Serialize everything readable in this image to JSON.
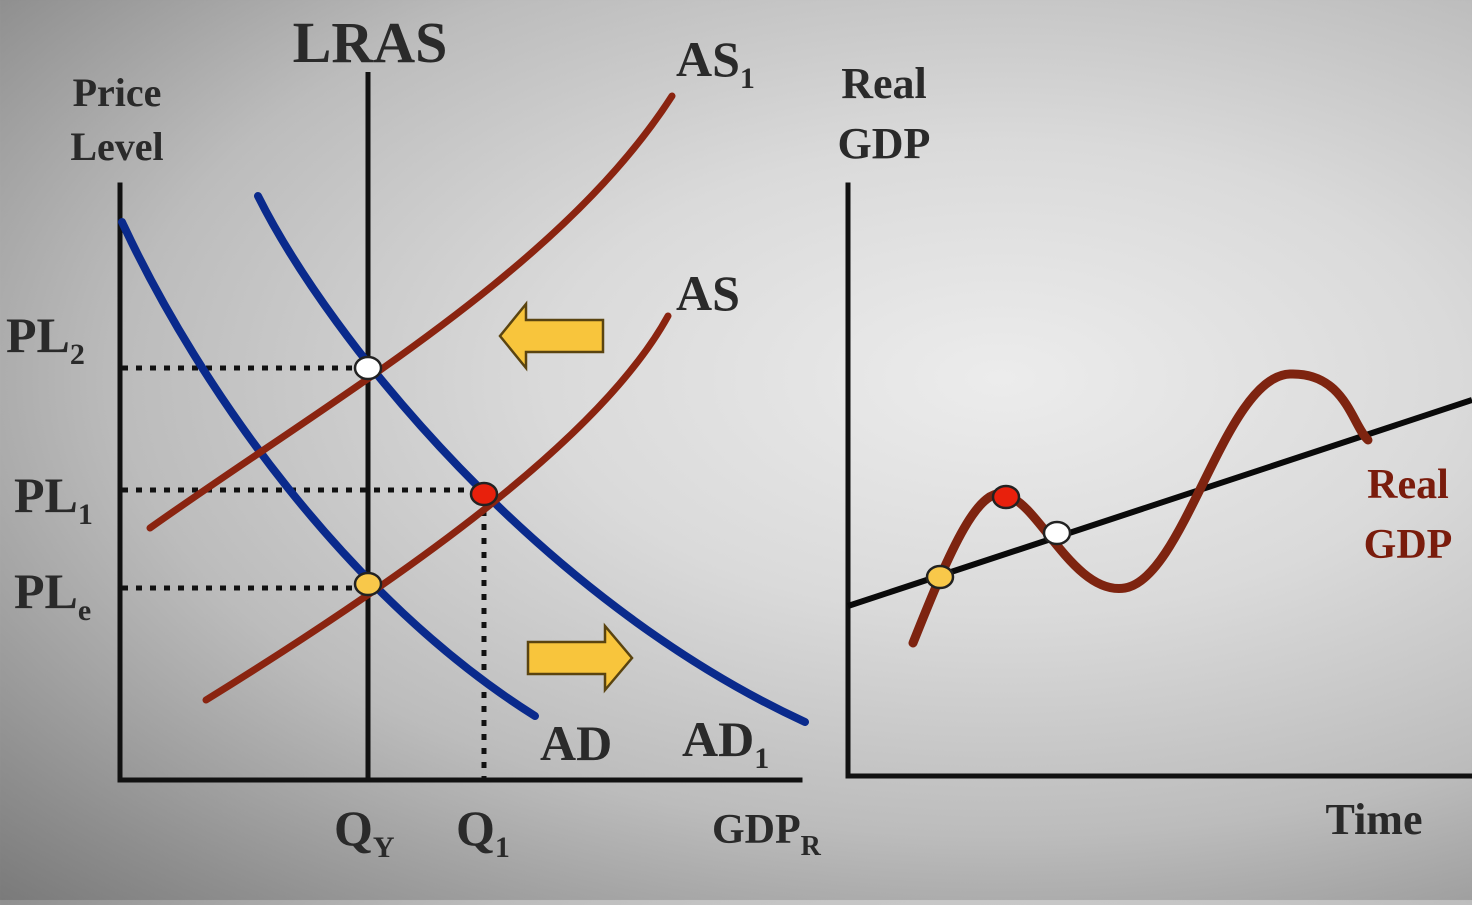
{
  "left_panel": {
    "y_axis_label": [
      "Price",
      "Level"
    ],
    "x_axis_label": {
      "main": "GDP",
      "sub": "R"
    },
    "lras_label": "LRAS",
    "curves": {
      "as1": {
        "main": "AS",
        "sub": "1"
      },
      "as": {
        "main": "AS",
        "sub": ""
      },
      "ad": {
        "main": "AD",
        "sub": ""
      },
      "ad1": {
        "main": "AD",
        "sub": "1"
      }
    },
    "price_levels": [
      {
        "main": "PL",
        "sub": "2"
      },
      {
        "main": "PL",
        "sub": "1"
      },
      {
        "main": "PL",
        "sub": "e"
      }
    ],
    "quantities": [
      {
        "main": "Q",
        "sub": "Y"
      },
      {
        "main": "Q",
        "sub": "1"
      }
    ],
    "points": [
      {
        "name": "PL2-QY",
        "color": "#ffffff"
      },
      {
        "name": "PL1-Q1",
        "color": "#e8200c"
      },
      {
        "name": "PLe-QY",
        "color": "#f8c84a"
      }
    ],
    "arrows": [
      {
        "direction": "left",
        "color": "#f8c53c"
      },
      {
        "direction": "right",
        "color": "#f8c53c"
      }
    ]
  },
  "right_panel": {
    "y_axis_label": [
      "Real",
      "GDP"
    ],
    "x_axis_label": "Time",
    "series_label": [
      "Real",
      "GDP"
    ],
    "points": [
      {
        "name": "start",
        "color": "#f8c84a"
      },
      {
        "name": "peak",
        "color": "#e8200c"
      },
      {
        "name": "return",
        "color": "#ffffff"
      }
    ]
  },
  "colors": {
    "ad_curve": "#0a2a8c",
    "as_curve": "#8a2410",
    "cycle_curve": "#7e2410",
    "axis": "#111111"
  }
}
